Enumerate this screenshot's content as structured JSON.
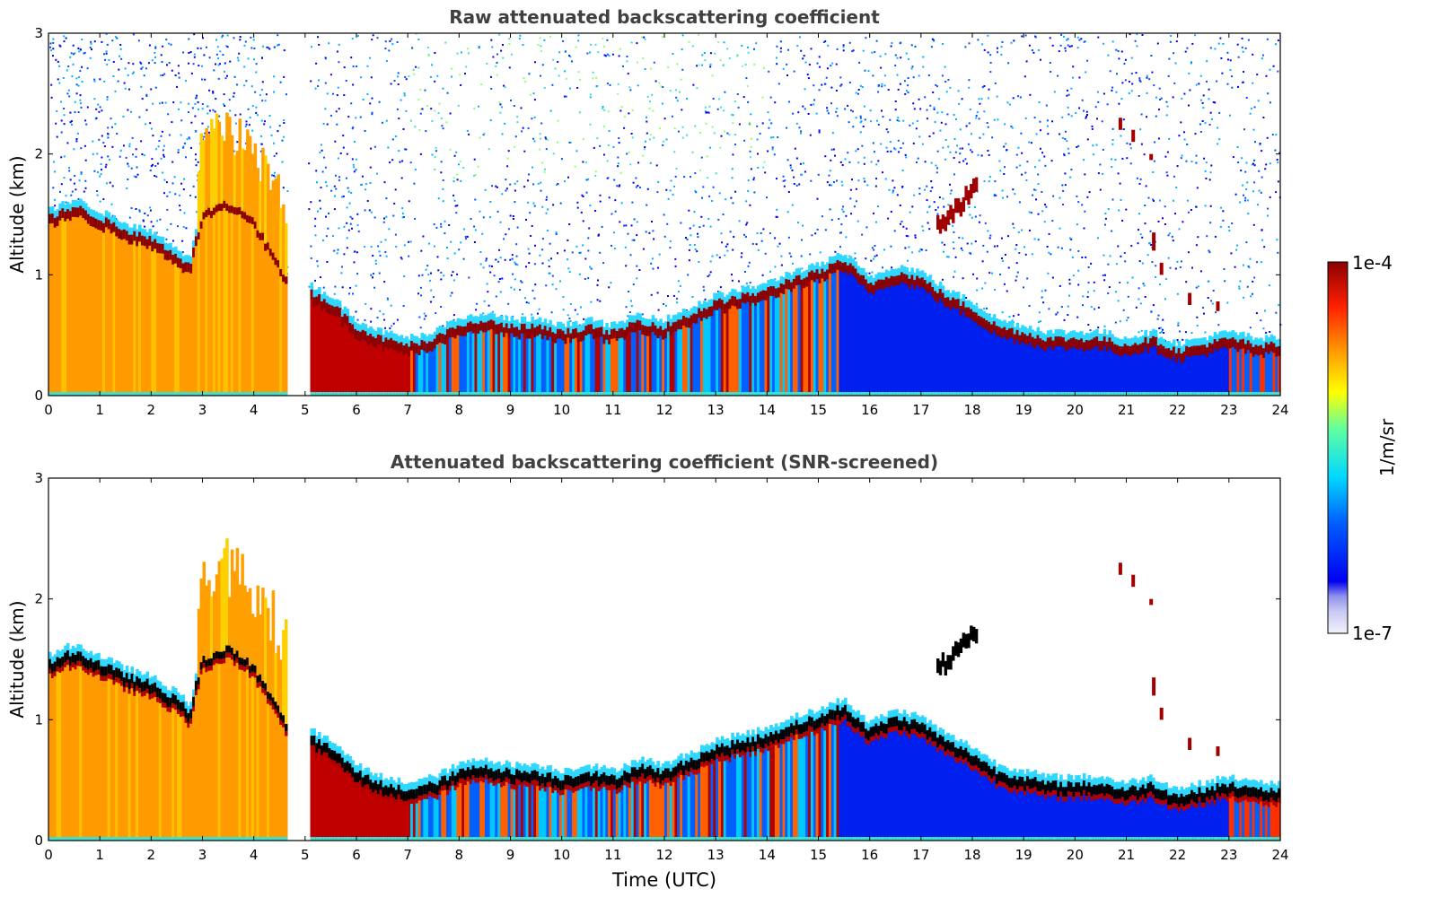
{
  "chart_data": [
    {
      "type": "heatmap",
      "title": "Raw attenuated backscattering coefficient",
      "xlabel": "",
      "ylabel": "Altitude (km)",
      "xlim": [
        0,
        24
      ],
      "ylim": [
        0,
        3
      ],
      "xticks": [
        "0",
        "1",
        "2",
        "3",
        "4",
        "5",
        "6",
        "7",
        "8",
        "9",
        "10",
        "11",
        "12",
        "13",
        "14",
        "15",
        "16",
        "17",
        "18",
        "19",
        "20",
        "21",
        "22",
        "23",
        "24"
      ],
      "yticks": [
        "0",
        "1",
        "2",
        "3"
      ],
      "data_gap_hours": [
        4.65,
        5.05
      ],
      "boundary_layer_top_km": [
        [
          0,
          1.45
        ],
        [
          0.5,
          1.55
        ],
        [
          1,
          1.45
        ],
        [
          1.5,
          1.35
        ],
        [
          2,
          1.28
        ],
        [
          2.5,
          1.15
        ],
        [
          2.75,
          1.05
        ],
        [
          3,
          1.5
        ],
        [
          3.5,
          1.6
        ],
        [
          4,
          1.45
        ],
        [
          4.6,
          1.0
        ],
        [
          5.05,
          0.85
        ],
        [
          5.5,
          0.75
        ],
        [
          6,
          0.55
        ],
        [
          6.5,
          0.45
        ],
        [
          7,
          0.4
        ],
        [
          7.5,
          0.45
        ],
        [
          8,
          0.55
        ],
        [
          8.5,
          0.6
        ],
        [
          9,
          0.55
        ],
        [
          9.5,
          0.55
        ],
        [
          10,
          0.5
        ],
        [
          10.5,
          0.55
        ],
        [
          11,
          0.5
        ],
        [
          11.5,
          0.6
        ],
        [
          12,
          0.55
        ],
        [
          12.5,
          0.65
        ],
        [
          13,
          0.75
        ],
        [
          13.5,
          0.8
        ],
        [
          14,
          0.85
        ],
        [
          14.5,
          0.95
        ],
        [
          15,
          1.0
        ],
        [
          15.5,
          1.1
        ],
        [
          16,
          0.9
        ],
        [
          16.5,
          1.0
        ],
        [
          17,
          0.95
        ],
        [
          17.5,
          0.8
        ],
        [
          18,
          0.7
        ],
        [
          18.5,
          0.55
        ],
        [
          19,
          0.5
        ],
        [
          19.5,
          0.45
        ],
        [
          20,
          0.45
        ],
        [
          20.5,
          0.45
        ],
        [
          21,
          0.4
        ],
        [
          21.5,
          0.45
        ],
        [
          22,
          0.35
        ],
        [
          22.5,
          0.4
        ],
        [
          23,
          0.45
        ],
        [
          23.5,
          0.4
        ],
        [
          24,
          0.4
        ]
      ]
    },
    {
      "type": "heatmap",
      "title": "Attenuated backscattering coefficient (SNR-screened)",
      "xlabel": "Time (UTC)",
      "ylabel": "Altitude (km)",
      "xlim": [
        0,
        24
      ],
      "ylim": [
        0,
        3
      ],
      "xticks": [
        "0",
        "1",
        "2",
        "3",
        "4",
        "5",
        "6",
        "7",
        "8",
        "9",
        "10",
        "11",
        "12",
        "13",
        "14",
        "15",
        "16",
        "17",
        "18",
        "19",
        "20",
        "21",
        "22",
        "23",
        "24"
      ],
      "yticks": [
        "0",
        "1",
        "2",
        "3"
      ],
      "data_gap_hours": [
        4.65,
        5.05
      ]
    }
  ],
  "colorbar": {
    "min_label": "1e-7",
    "max_label": "1e-4",
    "unit_label": "1/m/sr",
    "colors": [
      "#ececf8",
      "#c8c8f4",
      "#a0a0f0",
      "#0000f0",
      "#0040ff",
      "#0090ff",
      "#00d8ff",
      "#40ffc0",
      "#a0ff60",
      "#ffff00",
      "#ffc000",
      "#ff8000",
      "#ff3000",
      "#e00000",
      "#a00000",
      "#800000"
    ]
  },
  "colors": {
    "layer_top": "#8b0000",
    "aerosol_lower": "#ff9a00",
    "marine_bl": "#0020f0",
    "title_text": "#404040"
  }
}
